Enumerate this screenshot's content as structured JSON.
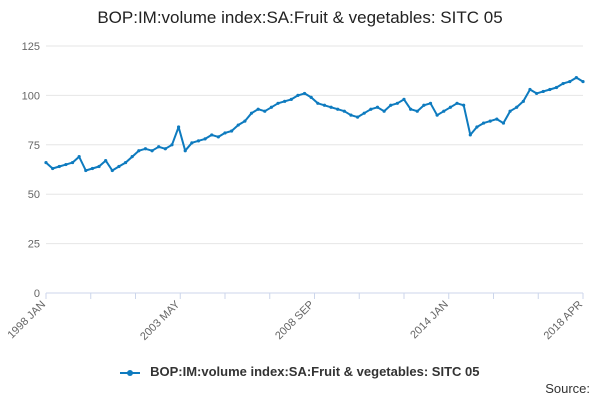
{
  "chart_data": {
    "type": "line",
    "title": "BOP:IM:volume index:SA:Fruit & vegetables: SITC 05",
    "xlabel": "",
    "ylabel": "",
    "ylim": [
      0,
      125
    ],
    "yticks": [
      0,
      25,
      50,
      75,
      100,
      125
    ],
    "xticks": [
      "1998 JAN",
      "2003 MAY",
      "2008 SEP",
      "2014 JAN",
      "2018 APR"
    ],
    "grid": true,
    "legend_position": "bottom",
    "series": [
      {
        "name": "BOP:IM:volume index:SA:Fruit & vegetables: SITC 05",
        "color": "#0e7bbf",
        "x": [
          1998.0,
          1998.25,
          1998.5,
          1998.75,
          1999.0,
          1999.25,
          1999.5,
          1999.75,
          2000.0,
          2000.25,
          2000.5,
          2000.75,
          2001.0,
          2001.25,
          2001.5,
          2001.75,
          2002.0,
          2002.25,
          2002.5,
          2002.75,
          2003.0,
          2003.25,
          2003.5,
          2003.75,
          2004.0,
          2004.25,
          2004.5,
          2004.75,
          2005.0,
          2005.25,
          2005.5,
          2005.75,
          2006.0,
          2006.25,
          2006.5,
          2006.75,
          2007.0,
          2007.25,
          2007.5,
          2007.75,
          2008.0,
          2008.25,
          2008.5,
          2008.75,
          2009.0,
          2009.25,
          2009.5,
          2009.75,
          2010.0,
          2010.25,
          2010.5,
          2010.75,
          2011.0,
          2011.25,
          2011.5,
          2011.75,
          2012.0,
          2012.25,
          2012.5,
          2012.75,
          2013.0,
          2013.25,
          2013.5,
          2013.75,
          2014.0,
          2014.25,
          2014.5,
          2014.75,
          2015.0,
          2015.25,
          2015.5,
          2015.75,
          2016.0,
          2016.25,
          2016.5,
          2016.75,
          2017.0,
          2017.25,
          2017.5,
          2017.75,
          2018.0,
          2018.25
        ],
        "values": [
          66,
          63,
          64,
          65,
          66,
          69,
          62,
          63,
          64,
          67,
          62,
          64,
          66,
          69,
          72,
          73,
          72,
          74,
          73,
          75,
          84,
          72,
          76,
          77,
          78,
          80,
          79,
          81,
          82,
          85,
          87,
          91,
          93,
          92,
          94,
          96,
          97,
          98,
          100,
          101,
          99,
          96,
          95,
          94,
          93,
          92,
          90,
          89,
          91,
          93,
          94,
          92,
          95,
          96,
          98,
          93,
          92,
          95,
          96,
          90,
          92,
          94,
          96,
          95,
          80,
          84,
          86,
          87,
          88,
          86,
          92,
          94,
          97,
          103,
          101,
          102,
          103,
          104,
          106,
          107,
          109,
          107
        ]
      }
    ]
  },
  "legend": {
    "label": "BOP:IM:volume index:SA:Fruit & vegetables: SITC 05"
  },
  "footer": {
    "source_label": "Source:"
  }
}
